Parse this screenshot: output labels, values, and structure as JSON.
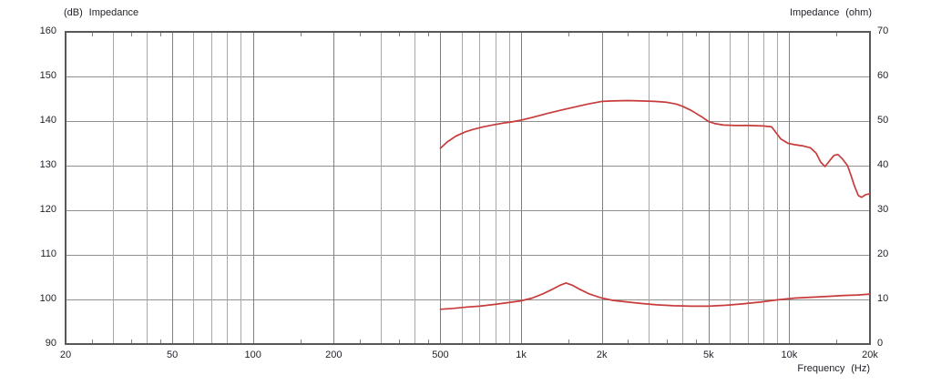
{
  "colors": {
    "curve": "#c83b3b",
    "frame": "#58585a",
    "grid_horizontal": "#909090",
    "grid_vertical_major": "#7f7f7f",
    "grid_vertical_minor": "#a7a7a7",
    "tick_stub": "#7f7f7f",
    "label_text": "#1f1f28"
  },
  "chart_data": {
    "type": "line",
    "title": "",
    "legend": "none",
    "grid": true,
    "x_axis": {
      "title": "Frequency (Hz)",
      "scale": "log",
      "min": 20,
      "max": 20000,
      "major_ticks": [
        {
          "v": 20,
          "label": "20"
        },
        {
          "v": 50,
          "label": "50"
        },
        {
          "v": 100,
          "label": "100"
        },
        {
          "v": 200,
          "label": "200"
        },
        {
          "v": 500,
          "label": "500"
        },
        {
          "v": 1000,
          "label": "1k"
        },
        {
          "v": 2000,
          "label": "2k"
        },
        {
          "v": 5000,
          "label": "5k"
        },
        {
          "v": 10000,
          "label": "10k"
        },
        {
          "v": 20000,
          "label": "20k"
        }
      ],
      "gridlines": [
        30,
        40,
        50,
        60,
        70,
        80,
        90,
        100,
        200,
        300,
        400,
        500,
        600,
        700,
        800,
        900,
        1000,
        2000,
        3000,
        4000,
        5000,
        6000,
        7000,
        8000,
        9000,
        10000
      ],
      "emphasized_gridlines": [
        50,
        100,
        200,
        500,
        1000,
        2000,
        5000,
        10000
      ],
      "minor_stub_ticks": [
        25,
        35,
        45,
        150,
        250,
        350,
        450,
        1500,
        2500,
        3500,
        4500,
        15000
      ]
    },
    "y_left": {
      "title": "(dB) Impedance",
      "min": 90,
      "max": 160,
      "step": 10,
      "tick_labels": [
        "160",
        "150",
        "140",
        "130",
        "120",
        "110",
        "100",
        "90"
      ]
    },
    "y_right": {
      "title": "Impedance (ohm)",
      "min": 0,
      "max": 70,
      "step": 10,
      "tick_labels": [
        "70",
        "60",
        "50",
        "40",
        "30",
        "20",
        "10",
        "0"
      ]
    },
    "series": [
      {
        "name": "response-curve-db",
        "axis": "left",
        "color": "#c83b3b",
        "points": [
          [
            500,
            133.9
          ],
          [
            530,
            135.3
          ],
          [
            570,
            136.6
          ],
          [
            620,
            137.6
          ],
          [
            660,
            138.1
          ],
          [
            720,
            138.7
          ],
          [
            780,
            139.1
          ],
          [
            850,
            139.5
          ],
          [
            920,
            139.8
          ],
          [
            1000,
            140.2
          ],
          [
            1100,
            140.8
          ],
          [
            1250,
            141.7
          ],
          [
            1400,
            142.4
          ],
          [
            1600,
            143.2
          ],
          [
            1800,
            143.9
          ],
          [
            2000,
            144.4
          ],
          [
            2200,
            144.5
          ],
          [
            2500,
            144.6
          ],
          [
            2800,
            144.5
          ],
          [
            3150,
            144.4
          ],
          [
            3500,
            144.2
          ],
          [
            3800,
            143.8
          ],
          [
            4000,
            143.3
          ],
          [
            4300,
            142.4
          ],
          [
            4700,
            141.0
          ],
          [
            5000,
            139.9
          ],
          [
            5300,
            139.4
          ],
          [
            5700,
            139.1
          ],
          [
            6300,
            139.0
          ],
          [
            7100,
            139.0
          ],
          [
            8000,
            138.9
          ],
          [
            8600,
            138.7
          ],
          [
            8900,
            137.5
          ],
          [
            9300,
            136.0
          ],
          [
            9900,
            135.0
          ],
          [
            10500,
            134.7
          ],
          [
            11300,
            134.4
          ],
          [
            12000,
            134.0
          ],
          [
            12600,
            132.8
          ],
          [
            13100,
            130.8
          ],
          [
            13600,
            129.8
          ],
          [
            14100,
            131.0
          ],
          [
            14700,
            132.3
          ],
          [
            15200,
            132.5
          ],
          [
            15800,
            131.5
          ],
          [
            16500,
            130.0
          ],
          [
            17000,
            127.8
          ],
          [
            17500,
            125.5
          ],
          [
            18100,
            123.3
          ],
          [
            18600,
            122.9
          ],
          [
            19300,
            123.5
          ],
          [
            20000,
            123.7
          ]
        ]
      },
      {
        "name": "impedance-curve-ohm",
        "axis": "right",
        "color": "#c83b3b",
        "points": [
          [
            500,
            7.8
          ],
          [
            560,
            8.0
          ],
          [
            630,
            8.3
          ],
          [
            700,
            8.5
          ],
          [
            800,
            8.9
          ],
          [
            900,
            9.3
          ],
          [
            1000,
            9.7
          ],
          [
            1100,
            10.3
          ],
          [
            1200,
            11.2
          ],
          [
            1300,
            12.2
          ],
          [
            1400,
            13.2
          ],
          [
            1470,
            13.7
          ],
          [
            1550,
            13.2
          ],
          [
            1650,
            12.3
          ],
          [
            1800,
            11.2
          ],
          [
            2000,
            10.3
          ],
          [
            2200,
            9.8
          ],
          [
            2500,
            9.4
          ],
          [
            2800,
            9.1
          ],
          [
            3200,
            8.8
          ],
          [
            3700,
            8.6
          ],
          [
            4300,
            8.5
          ],
          [
            5000,
            8.5
          ],
          [
            5800,
            8.7
          ],
          [
            6700,
            9.0
          ],
          [
            7800,
            9.4
          ],
          [
            9000,
            9.9
          ],
          [
            10500,
            10.3
          ],
          [
            12000,
            10.5
          ],
          [
            14000,
            10.7
          ],
          [
            16000,
            10.9
          ],
          [
            18000,
            11.0
          ],
          [
            20000,
            11.2
          ]
        ]
      }
    ]
  }
}
